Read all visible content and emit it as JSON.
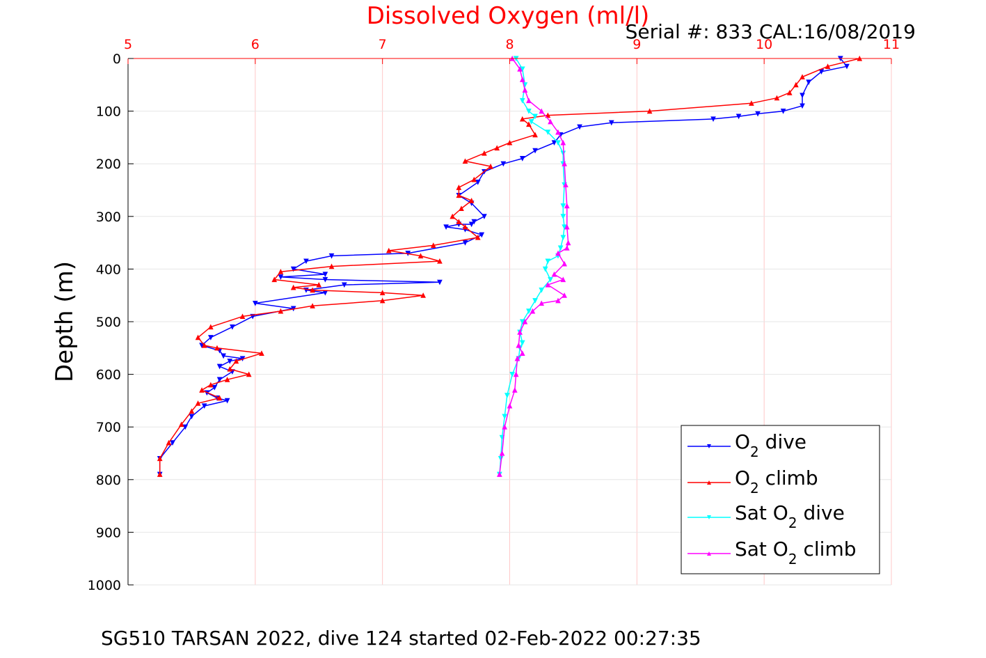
{
  "chart_data": {
    "type": "line",
    "title": "Dissolved Oxygen (ml/l)",
    "serial_text": "Serial #: 833  CAL:16/08/2019",
    "footer": "SG510 TARSAN 2022, dive 124 started 02-Feb-2022 00:27:35",
    "ylabel": "Depth (m)",
    "xlim": [
      5,
      11
    ],
    "ylim": [
      0,
      1000
    ],
    "y_reversed": true,
    "x_axis_position": "top",
    "xticks": [
      "5",
      "6",
      "7",
      "8",
      "9",
      "10",
      "11"
    ],
    "yticks": [
      "0",
      "100",
      "200",
      "300",
      "400",
      "500",
      "600",
      "700",
      "800",
      "900",
      "1000"
    ],
    "grid": true,
    "legend_position": "bottom-right",
    "colors": {
      "title": "#ff0000",
      "x_axis": "#ff0000",
      "grid": "#ffc8c8",
      "axis": "#000000"
    },
    "legend": [
      {
        "pre": "O",
        "sub": "2",
        "post": " dive"
      },
      {
        "pre": "O",
        "sub": "2",
        "post": " climb"
      },
      {
        "pre": "Sat O",
        "sub": "2",
        "post": " dive"
      },
      {
        "pre": "Sat O",
        "sub": "2",
        "post": " climb"
      }
    ],
    "series": [
      {
        "color": "#0000ff",
        "marker": "triangle-down",
        "x": [
          10.6,
          10.65,
          10.45,
          10.35,
          10.3,
          10.3,
          10.15,
          9.95,
          9.8,
          9.6,
          8.8,
          8.55,
          8.4,
          8.35,
          8.2,
          8.1,
          7.95,
          7.8,
          7.75,
          7.6,
          7.7,
          7.8,
          7.72,
          7.7,
          7.6,
          7.5,
          7.65,
          7.78,
          7.65,
          7.2,
          6.6,
          6.4,
          6.3,
          6.55,
          6.2,
          6.55,
          7.45,
          6.7,
          6.4,
          6.55,
          6.0,
          6.3,
          5.98,
          5.82,
          5.65,
          5.58,
          5.72,
          5.75,
          5.9,
          5.8,
          5.72,
          5.82,
          5.72,
          5.68,
          5.62,
          5.7,
          5.78,
          5.6,
          5.5,
          5.45,
          5.35,
          5.25,
          5.25
        ],
        "y": [
          0,
          15,
          25,
          45,
          70,
          90,
          100,
          105,
          110,
          115,
          122,
          130,
          145,
          160,
          175,
          190,
          200,
          215,
          235,
          260,
          275,
          300,
          310,
          315,
          315,
          320,
          325,
          335,
          350,
          370,
          375,
          385,
          400,
          410,
          415,
          420,
          425,
          430,
          440,
          445,
          465,
          475,
          490,
          510,
          530,
          545,
          555,
          565,
          570,
          575,
          585,
          595,
          610,
          625,
          635,
          645,
          650,
          660,
          680,
          700,
          730,
          760,
          790
        ]
      },
      {
        "color": "#ff0000",
        "marker": "triangle-up",
        "x": [
          10.75,
          10.5,
          10.3,
          10.25,
          10.2,
          10.1,
          9.9,
          9.1,
          8.3,
          8.1,
          8.15,
          8.2,
          8.0,
          7.9,
          7.8,
          7.65,
          7.85,
          7.72,
          7.6,
          7.6,
          7.7,
          7.62,
          7.55,
          7.6,
          7.65,
          7.75,
          7.4,
          7.05,
          7.3,
          7.45,
          6.6,
          6.2,
          6.15,
          6.5,
          6.3,
          6.45,
          7.0,
          7.32,
          7.0,
          6.45,
          6.2,
          5.9,
          5.65,
          5.55,
          5.6,
          5.7,
          6.05,
          5.85,
          5.8,
          5.95,
          5.78,
          5.65,
          5.58,
          5.72,
          5.55,
          5.5,
          5.42,
          5.32,
          5.25,
          5.25
        ],
        "y": [
          0,
          15,
          35,
          50,
          65,
          75,
          85,
          100,
          108,
          115,
          125,
          145,
          160,
          170,
          180,
          195,
          205,
          230,
          245,
          260,
          270,
          285,
          300,
          310,
          320,
          340,
          355,
          365,
          375,
          385,
          395,
          405,
          420,
          430,
          435,
          440,
          445,
          450,
          460,
          470,
          480,
          490,
          510,
          530,
          545,
          550,
          560,
          575,
          590,
          600,
          610,
          620,
          630,
          645,
          655,
          670,
          695,
          730,
          760,
          790
        ]
      },
      {
        "color": "#00ffff",
        "marker": "triangle-down",
        "x": [
          8.05,
          8.1,
          8.12,
          8.1,
          8.15,
          8.2,
          8.17,
          8.3,
          8.38,
          8.42,
          8.42,
          8.43,
          8.42,
          8.42,
          8.43,
          8.42,
          8.4,
          8.38,
          8.3,
          8.28,
          8.32,
          8.25,
          8.2,
          8.15,
          8.1,
          8.08,
          8.1,
          8.08,
          8.07,
          8.02,
          7.98,
          7.96,
          7.94,
          7.93,
          7.92
        ],
        "y": [
          0,
          20,
          50,
          80,
          100,
          110,
          120,
          140,
          160,
          180,
          200,
          240,
          280,
          300,
          320,
          340,
          360,
          375,
          385,
          400,
          420,
          440,
          460,
          480,
          500,
          520,
          540,
          550,
          570,
          600,
          640,
          680,
          720,
          760,
          790
        ]
      },
      {
        "color": "#ff00ff",
        "marker": "triangle-up",
        "x": [
          8.02,
          8.08,
          8.1,
          8.12,
          8.15,
          8.25,
          8.32,
          8.38,
          8.42,
          8.43,
          8.44,
          8.45,
          8.45,
          8.46,
          8.45,
          8.38,
          8.43,
          8.35,
          8.42,
          8.3,
          8.43,
          8.38,
          8.25,
          8.18,
          8.12,
          8.08,
          8.07,
          8.1,
          8.06,
          8.05,
          8.04,
          8.0,
          7.96,
          7.94,
          7.92
        ],
        "y": [
          0,
          20,
          40,
          60,
          80,
          100,
          120,
          140,
          160,
          200,
          240,
          280,
          320,
          350,
          360,
          370,
          390,
          410,
          420,
          430,
          450,
          460,
          465,
          480,
          500,
          520,
          545,
          560,
          570,
          600,
          630,
          660,
          700,
          750,
          790
        ]
      }
    ]
  }
}
